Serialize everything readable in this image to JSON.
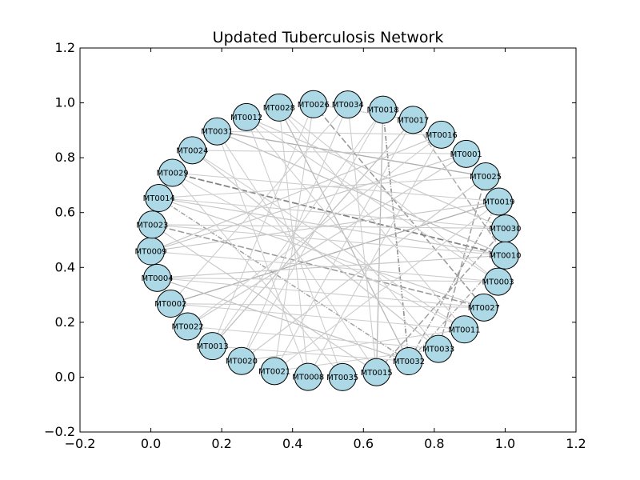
{
  "figure": {
    "title": "Updated Tuberculosis Network"
  },
  "chart_data": {
    "type": "network",
    "title": "Updated Tuberculosis Network",
    "xlim": [
      -0.2,
      1.2
    ],
    "ylim": [
      -0.2,
      1.2
    ],
    "x_ticks": [
      "−0.2",
      "0.0",
      "0.2",
      "0.4",
      "0.6",
      "0.8",
      "1.0",
      "1.2"
    ],
    "y_ticks": [
      "−0.2",
      "0.0",
      "0.2",
      "0.4",
      "0.6",
      "0.8",
      "1.0",
      "1.2"
    ],
    "node_color": "#add8e6",
    "nodes": [
      {
        "id": "MT0026",
        "x": 0.459,
        "y": 0.995
      },
      {
        "id": "MT0034",
        "x": 0.556,
        "y": 0.994
      },
      {
        "id": "MT0018",
        "x": 0.655,
        "y": 0.975
      },
      {
        "id": "MT0017",
        "x": 0.74,
        "y": 0.938
      },
      {
        "id": "MT0016",
        "x": 0.82,
        "y": 0.884
      },
      {
        "id": "MT0001",
        "x": 0.89,
        "y": 0.814
      },
      {
        "id": "MT0025",
        "x": 0.945,
        "y": 0.732
      },
      {
        "id": "MT0019",
        "x": 0.982,
        "y": 0.64
      },
      {
        "id": "MT0030",
        "x": 1.0,
        "y": 0.542
      },
      {
        "id": "MT0010",
        "x": 1.0,
        "y": 0.444
      },
      {
        "id": "MT0003",
        "x": 0.98,
        "y": 0.348
      },
      {
        "id": "MT0027",
        "x": 0.94,
        "y": 0.254
      },
      {
        "id": "MT0011",
        "x": 0.885,
        "y": 0.174
      },
      {
        "id": "MT0033",
        "x": 0.812,
        "y": 0.103
      },
      {
        "id": "MT0032",
        "x": 0.728,
        "y": 0.058
      },
      {
        "id": "MT0015",
        "x": 0.637,
        "y": 0.018
      },
      {
        "id": "MT0035",
        "x": 0.541,
        "y": 0.0
      },
      {
        "id": "MT0008",
        "x": 0.444,
        "y": 0.001
      },
      {
        "id": "MT0021",
        "x": 0.349,
        "y": 0.022
      },
      {
        "id": "MT0020",
        "x": 0.256,
        "y": 0.059
      },
      {
        "id": "MT0013",
        "x": 0.174,
        "y": 0.113
      },
      {
        "id": "MT0022",
        "x": 0.104,
        "y": 0.185
      },
      {
        "id": "MT0002",
        "x": 0.056,
        "y": 0.268
      },
      {
        "id": "MT0004",
        "x": 0.018,
        "y": 0.362
      },
      {
        "id": "MT0009",
        "x": 0.0,
        "y": 0.459
      },
      {
        "id": "MT0023",
        "x": 0.004,
        "y": 0.556
      },
      {
        "id": "MT0014",
        "x": 0.023,
        "y": 0.653
      },
      {
        "id": "MT0029",
        "x": 0.061,
        "y": 0.745
      },
      {
        "id": "MT0024",
        "x": 0.117,
        "y": 0.827
      },
      {
        "id": "MT0031",
        "x": 0.187,
        "y": 0.896
      },
      {
        "id": "MT0012",
        "x": 0.27,
        "y": 0.948
      },
      {
        "id": "MT0028",
        "x": 0.362,
        "y": 0.983
      }
    ],
    "edges": [
      {
        "source": "MT0026",
        "target": "MT0027",
        "weight": 0.55
      },
      {
        "source": "MT0018",
        "target": "MT0032",
        "weight": 0.6
      },
      {
        "source": "MT0017",
        "target": "MT0010",
        "weight": 0.45
      },
      {
        "source": "MT0031",
        "target": "MT0025",
        "weight": 0.4
      },
      {
        "source": "MT0029",
        "target": "MT0010",
        "weight": 0.7
      },
      {
        "source": "MT0002",
        "target": "MT0019",
        "weight": 0.4
      },
      {
        "source": "MT0023",
        "target": "MT0027",
        "weight": 0.55
      },
      {
        "source": "MT0014",
        "target": "MT0032",
        "weight": 0.5
      },
      {
        "source": "MT0030",
        "target": "MT0015",
        "weight": 0.5
      },
      {
        "source": "MT0019",
        "target": "MT0032",
        "weight": 0.55
      },
      {
        "source": "MT0025",
        "target": "MT0033",
        "weight": 0.5
      },
      {
        "source": "MT0010",
        "target": "MT0032",
        "weight": 0.45
      },
      {
        "source": "MT0028",
        "target": "MT0032",
        "weight": 0.35
      },
      {
        "source": "MT0024",
        "target": "MT0033",
        "weight": 0.3
      },
      {
        "source": "MT0031",
        "target": "MT0010",
        "weight": 0.3
      },
      {
        "source": "MT0018",
        "target": "MT0015",
        "weight": 0.35
      },
      {
        "source": "MT0012",
        "target": "MT0030",
        "weight": 0.25
      },
      {
        "source": "MT0009",
        "target": "MT0001",
        "weight": 0.25
      },
      {
        "source": "MT0004",
        "target": "MT0010",
        "weight": 0.25
      },
      {
        "source": "MT0022",
        "target": "MT0001",
        "weight": 0.25
      },
      {
        "source": "MT0013",
        "target": "MT0017",
        "weight": 0.3
      },
      {
        "source": "MT0020",
        "target": "MT0025",
        "weight": 0.25
      },
      {
        "source": "MT0021",
        "target": "MT0019",
        "weight": 0.2
      },
      {
        "source": "MT0008",
        "target": "MT0031",
        "weight": 0.2
      },
      {
        "source": "MT0035",
        "target": "MT0029",
        "weight": 0.2
      },
      {
        "source": "MT0015",
        "target": "MT0023",
        "weight": 0.25
      },
      {
        "source": "MT0032",
        "target": "MT0004",
        "weight": 0.3
      },
      {
        "source": "MT0033",
        "target": "MT0012",
        "weight": 0.2
      },
      {
        "source": "MT0011",
        "target": "MT0024",
        "weight": 0.2
      },
      {
        "source": "MT0027",
        "target": "MT0014",
        "weight": 0.25
      },
      {
        "source": "MT0003",
        "target": "MT0028",
        "weight": 0.2
      },
      {
        "source": "MT0026",
        "target": "MT0013",
        "weight": 0.2
      },
      {
        "source": "MT0034",
        "target": "MT0002",
        "weight": 0.2
      },
      {
        "source": "MT0016",
        "target": "MT0009",
        "weight": 0.25
      },
      {
        "source": "MT0001",
        "target": "MT0022",
        "weight": 0.2
      },
      {
        "source": "MT0025",
        "target": "MT0020",
        "weight": 0.2
      },
      {
        "source": "MT0019",
        "target": "MT0009",
        "weight": 0.25
      },
      {
        "source": "MT0030",
        "target": "MT0023",
        "weight": 0.2
      },
      {
        "source": "MT0010",
        "target": "MT0014",
        "weight": 0.25
      },
      {
        "source": "MT0003",
        "target": "MT0004",
        "weight": 0.2
      },
      {
        "source": "MT0027",
        "target": "MT0002",
        "weight": 0.2
      },
      {
        "source": "MT0011",
        "target": "MT0029",
        "weight": 0.2
      },
      {
        "source": "MT0033",
        "target": "MT0024",
        "weight": 0.2
      },
      {
        "source": "MT0015",
        "target": "MT0031",
        "weight": 0.2
      },
      {
        "source": "MT0035",
        "target": "MT0012",
        "weight": 0.2
      },
      {
        "source": "MT0008",
        "target": "MT0028",
        "weight": 0.2
      },
      {
        "source": "MT0021",
        "target": "MT0026",
        "weight": 0.2
      },
      {
        "source": "MT0020",
        "target": "MT0034",
        "weight": 0.2
      },
      {
        "source": "MT0013",
        "target": "MT0018",
        "weight": 0.2
      },
      {
        "source": "MT0022",
        "target": "MT0016",
        "weight": 0.2
      },
      {
        "source": "MT0017",
        "target": "MT0021",
        "weight": 0.2
      },
      {
        "source": "MT0016",
        "target": "MT0008",
        "weight": 0.2
      },
      {
        "source": "MT0018",
        "target": "MT0020",
        "weight": 0.2
      },
      {
        "source": "MT0034",
        "target": "MT0015",
        "weight": 0.2
      },
      {
        "source": "MT0028",
        "target": "MT0011",
        "weight": 0.2
      },
      {
        "source": "MT0012",
        "target": "MT0003",
        "weight": 0.2
      },
      {
        "source": "MT0014",
        "target": "MT0030",
        "weight": 0.2
      },
      {
        "source": "MT0029",
        "target": "MT0019",
        "weight": 0.2
      },
      {
        "source": "MT0023",
        "target": "MT0010",
        "weight": 0.2
      },
      {
        "source": "MT0009",
        "target": "MT0003",
        "weight": 0.2
      },
      {
        "source": "MT0004",
        "target": "MT0027",
        "weight": 0.2
      },
      {
        "source": "MT0002",
        "target": "MT0011",
        "weight": 0.2
      },
      {
        "source": "MT0022",
        "target": "MT0033",
        "weight": 0.2
      },
      {
        "source": "MT0013",
        "target": "MT0032",
        "weight": 0.2
      },
      {
        "source": "MT0024",
        "target": "MT0001",
        "weight": 0.2
      },
      {
        "source": "MT0031",
        "target": "MT0016",
        "weight": 0.2
      },
      {
        "source": "MT0026",
        "target": "MT0017",
        "weight": 0.2
      },
      {
        "source": "MT0014",
        "target": "MT0025",
        "weight": 0.2
      },
      {
        "source": "MT0023",
        "target": "MT0030",
        "weight": 0.2
      },
      {
        "source": "MT0020",
        "target": "MT0011",
        "weight": 0.2
      },
      {
        "source": "MT0021",
        "target": "MT0033",
        "weight": 0.2
      }
    ]
  }
}
